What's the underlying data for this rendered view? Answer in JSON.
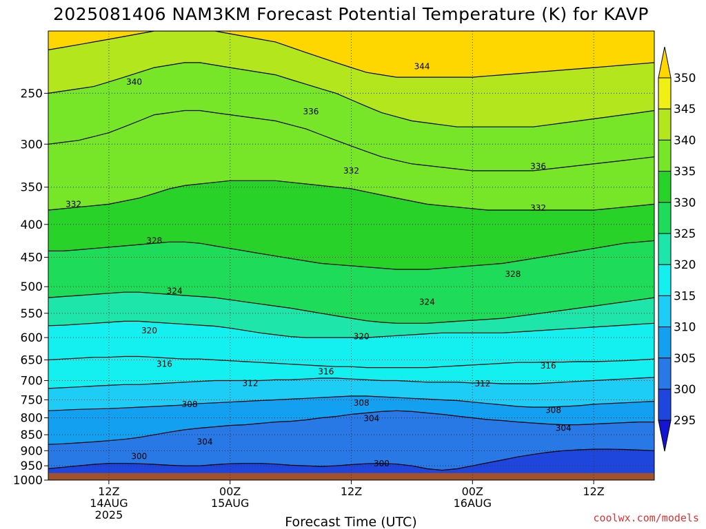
{
  "chart_data": {
    "type": "heatmap",
    "title": "2025081406 NAM3KM Forecast Potential Temperature (K) for KAVP",
    "subtitle": "",
    "xlabel": "Forecast Time (UTC)",
    "ylabel": "",
    "y_scale": "log",
    "y_reversed": true,
    "ylim": [
      1000,
      200
    ],
    "y_ticks": [
      250,
      300,
      350,
      400,
      450,
      500,
      550,
      600,
      650,
      700,
      750,
      800,
      850,
      900,
      950,
      1000
    ],
    "xlim": [
      "2025-08-14 06Z",
      "2025-08-16 18Z"
    ],
    "x_ticks": [
      {
        "hour": 6,
        "line1": "12Z",
        "line2": "14AUG",
        "line3": "2025"
      },
      {
        "hour": 18,
        "line1": "00Z",
        "line2": "15AUG",
        "line3": ""
      },
      {
        "hour": 30,
        "line1": "12Z",
        "line2": "",
        "line3": ""
      },
      {
        "hour": 42,
        "line1": "00Z",
        "line2": "16AUG",
        "line3": ""
      },
      {
        "hour": 54,
        "line1": "12Z",
        "line2": "",
        "line3": ""
      }
    ],
    "grid": true,
    "colorbar": {
      "unit": "K",
      "levels": [
        295,
        300,
        305,
        310,
        315,
        320,
        325,
        330,
        335,
        340,
        345,
        350
      ],
      "colors": [
        "#1414d2",
        "#1e46dc",
        "#2878e6",
        "#14a0f0",
        "#1ecdf5",
        "#14f0f0",
        "#1ee6aa",
        "#1edc5a",
        "#28d228",
        "#78e628",
        "#b4e61e",
        "#f0f014",
        "#ffd700"
      ],
      "extend": "both"
    },
    "contour_interval": 4,
    "contours": [
      {
        "value": 300,
        "p": [
          960,
          955,
          950,
          945,
          942,
          942,
          943,
          945,
          948,
          950,
          950,
          946,
          943,
          942,
          942,
          944,
          948,
          950,
          952,
          950,
          946,
          943,
          942,
          944,
          950,
          960,
          965,
          960,
          950,
          940,
          930,
          920,
          912,
          905,
          900,
          897,
          895,
          895,
          896,
          898,
          900
        ]
      },
      {
        "value": 304,
        "p": [
          880,
          878,
          875,
          872,
          868,
          864,
          858,
          850,
          842,
          835,
          830,
          826,
          822,
          820,
          816,
          812,
          810,
          806,
          800,
          796,
          790,
          786,
          782,
          780,
          782,
          786,
          790,
          795,
          800,
          805,
          808,
          812,
          815,
          818,
          820,
          820,
          818,
          816,
          814,
          812,
          812
        ]
      },
      {
        "value": 308,
        "p": [
          780,
          778,
          776,
          775,
          774,
          772,
          770,
          768,
          766,
          764,
          760,
          758,
          756,
          754,
          752,
          750,
          748,
          746,
          744,
          742,
          740,
          740,
          742,
          744,
          746,
          748,
          750,
          752,
          756,
          760,
          764,
          768,
          770,
          770,
          768,
          766,
          762,
          760,
          758,
          756,
          754
        ]
      },
      {
        "value": 312,
        "p": [
          720,
          718,
          716,
          714,
          712,
          710,
          710,
          708,
          706,
          704,
          702,
          700,
          700,
          700,
          700,
          698,
          698,
          696,
          694,
          694,
          696,
          698,
          700,
          700,
          702,
          704,
          704,
          704,
          706,
          706,
          708,
          708,
          708,
          706,
          704,
          702,
          700,
          698,
          696,
          694,
          692
        ]
      },
      {
        "value": 316,
        "p": [
          650,
          648,
          646,
          644,
          644,
          642,
          642,
          644,
          646,
          648,
          648,
          650,
          652,
          654,
          656,
          658,
          660,
          662,
          664,
          666,
          666,
          668,
          668,
          668,
          668,
          668,
          666,
          664,
          662,
          660,
          658,
          656,
          656,
          655,
          655,
          654,
          654,
          653,
          652,
          650,
          648
        ]
      },
      {
        "value": 320,
        "p": [
          575,
          574,
          572,
          570,
          568,
          566,
          566,
          568,
          570,
          572,
          574,
          576,
          580,
          585,
          590,
          594,
          598,
          600,
          600,
          600,
          600,
          600,
          598,
          596,
          594,
          592,
          590,
          590,
          590,
          590,
          590,
          588,
          586,
          584,
          582,
          580,
          578,
          576,
          574,
          572,
          570
        ]
      },
      {
        "value": 324,
        "p": [
          520,
          518,
          516,
          514,
          512,
          510,
          510,
          512,
          514,
          516,
          518,
          520,
          524,
          528,
          532,
          536,
          540,
          545,
          550,
          555,
          560,
          565,
          568,
          570,
          570,
          570,
          568,
          566,
          564,
          562,
          560,
          556,
          552,
          548,
          544,
          540,
          536,
          532,
          528,
          524,
          520
        ]
      },
      {
        "value": 328,
        "p": [
          440,
          440,
          438,
          436,
          434,
          432,
          430,
          428,
          426,
          426,
          428,
          432,
          436,
          440,
          444,
          448,
          452,
          456,
          460,
          462,
          464,
          466,
          468,
          470,
          470,
          470,
          468,
          466,
          464,
          462,
          460,
          456,
          452,
          448,
          444,
          440,
          436,
          432,
          428,
          426,
          424
        ]
      },
      {
        "value": 332,
        "p": [
          380,
          378,
          376,
          374,
          372,
          368,
          364,
          358,
          352,
          348,
          346,
          344,
          342,
          342,
          342,
          342,
          344,
          346,
          348,
          350,
          352,
          356,
          360,
          364,
          368,
          372,
          374,
          376,
          378,
          380,
          380,
          380,
          380,
          380,
          380,
          380,
          380,
          378,
          376,
          374,
          372
        ]
      },
      {
        "value": 336,
        "p": [
          300,
          298,
          296,
          292,
          288,
          282,
          276,
          270,
          268,
          266,
          266,
          268,
          270,
          272,
          274,
          276,
          280,
          284,
          290,
          296,
          302,
          308,
          314,
          318,
          322,
          324,
          326,
          328,
          330,
          330,
          330,
          330,
          330,
          328,
          326,
          324,
          322,
          320,
          318,
          316,
          314
        ]
      },
      {
        "value": 340,
        "p": [
          250,
          248,
          246,
          244,
          240,
          236,
          232,
          228,
          226,
          224,
          224,
          226,
          228,
          230,
          232,
          234,
          238,
          242,
          246,
          250,
          256,
          262,
          268,
          272,
          276,
          278,
          280,
          282,
          282,
          282,
          282,
          282,
          282,
          280,
          278,
          276,
          274,
          272,
          270,
          268,
          266
        ]
      },
      {
        "value": 344,
        "p": [
          214,
          212,
          210,
          208,
          206,
          204,
          202,
          200,
          200,
          200,
          200,
          200,
          202,
          204,
          206,
          208,
          212,
          216,
          220,
          224,
          228,
          232,
          234,
          236,
          236,
          236,
          236,
          236,
          236,
          235,
          234,
          233,
          232,
          231,
          230,
          229,
          228,
          227,
          226,
          225,
          224
        ]
      }
    ],
    "contour_labels": [
      {
        "value": 340,
        "hour": 8.5,
        "p": 240
      },
      {
        "value": 336,
        "hour": 26,
        "p": 267
      },
      {
        "value": 344,
        "hour": 37,
        "p": 227
      },
      {
        "value": 332,
        "hour": 2.5,
        "p": 372
      },
      {
        "value": 332,
        "hour": 30,
        "p": 330
      },
      {
        "value": 336,
        "hour": 48.5,
        "p": 325
      },
      {
        "value": 332,
        "hour": 48.5,
        "p": 377
      },
      {
        "value": 328,
        "hour": 10.5,
        "p": 424
      },
      {
        "value": 328,
        "hour": 46,
        "p": 478
      },
      {
        "value": 324,
        "hour": 12.5,
        "p": 508
      },
      {
        "value": 324,
        "hour": 37.5,
        "p": 528
      },
      {
        "value": 320,
        "hour": 10,
        "p": 585
      },
      {
        "value": 320,
        "hour": 31,
        "p": 598
      },
      {
        "value": 316,
        "hour": 11.5,
        "p": 660
      },
      {
        "value": 316,
        "hour": 27.5,
        "p": 678
      },
      {
        "value": 316,
        "hour": 49.5,
        "p": 664
      },
      {
        "value": 312,
        "hour": 20,
        "p": 707
      },
      {
        "value": 312,
        "hour": 43,
        "p": 708
      },
      {
        "value": 308,
        "hour": 14,
        "p": 762
      },
      {
        "value": 308,
        "hour": 31,
        "p": 758
      },
      {
        "value": 308,
        "hour": 50,
        "p": 778
      },
      {
        "value": 304,
        "hour": 32,
        "p": 802
      },
      {
        "value": 304,
        "hour": 51,
        "p": 830
      },
      {
        "value": 304,
        "hour": 15.5,
        "p": 872
      },
      {
        "value": 300,
        "hour": 9,
        "p": 918
      },
      {
        "value": 300,
        "hour": 33,
        "p": 942
      }
    ],
    "ground_color": "#a0522d",
    "ground_top": 975
  },
  "credit": "coolwx.com/models"
}
